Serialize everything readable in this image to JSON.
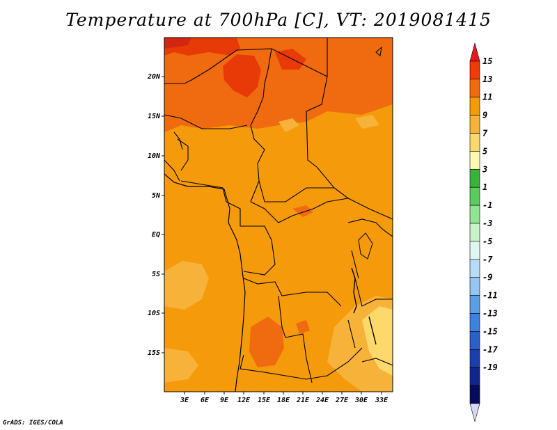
{
  "title": "Temperature at 700hPa [C], VT: 2019081415",
  "credit": "GrADS: IGES/COLA",
  "map": {
    "lon_range": [
      0,
      34
    ],
    "lat_range": [
      -20,
      25
    ],
    "lon_ticks": [
      "3E",
      "6E",
      "9E",
      "12E",
      "15E",
      "18E",
      "21E",
      "24E",
      "27E",
      "30E",
      "33E"
    ],
    "lat_ticks": [
      "20N",
      "15N",
      "10N",
      "5N",
      "EQ",
      "5S",
      "10S",
      "15S"
    ]
  },
  "colorbar": {
    "labels": [
      "15",
      "13",
      "11",
      "9",
      "7",
      "5",
      "3",
      "1",
      "-1",
      "-3",
      "-5",
      "-7",
      "-9",
      "-11",
      "-13",
      "-15",
      "-17",
      "-19"
    ],
    "colors": [
      "#e41a1c",
      "#f03b05",
      "#f06a10",
      "#f59a0b",
      "#f7b23a",
      "#fdd86b",
      "#fef8b0",
      "#39b339",
      "#5ccc5c",
      "#8ee68e",
      "#c8f2c8",
      "#dff6f0",
      "#b6dcf7",
      "#92c4f4",
      "#5a9fe8",
      "#3d82e0",
      "#2a5fcc",
      "#1c3fb0",
      "#0f2590",
      "#080a60",
      "#d8d8f8"
    ]
  }
}
